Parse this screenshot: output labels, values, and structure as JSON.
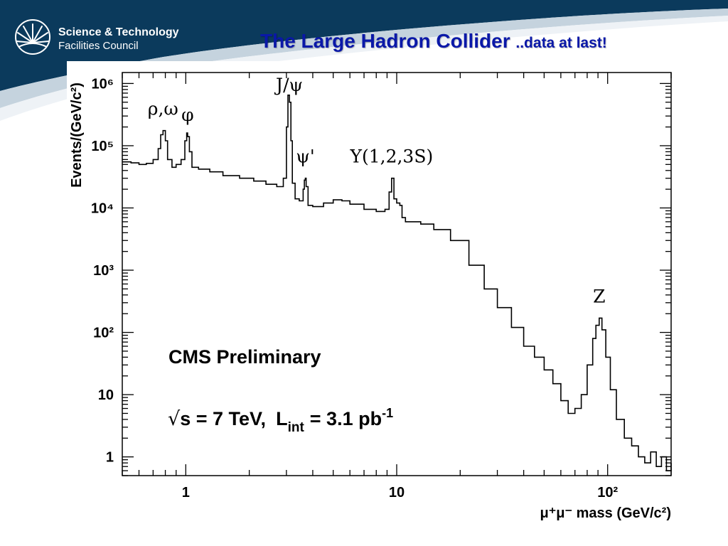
{
  "header": {
    "logo_line_1": "Science & Technology",
    "logo_line_2": "Facilities Council",
    "title": "The Large Hadron Collider",
    "title_suffix": "..data at last!"
  },
  "colors": {
    "banner": "#0b3a5c",
    "title": "#0a18a8",
    "histogram": "#000000"
  },
  "chart_data": {
    "type": "line",
    "title": "",
    "xlabel": "μ⁺μ⁻ mass (GeV/c²)",
    "ylabel": "Events/(GeV/c²)",
    "xscale": "log",
    "yscale": "log",
    "xlim": [
      0.5,
      200
    ],
    "ylim": [
      0.5,
      1500000
    ],
    "grid": false,
    "x_ticks": [
      {
        "value": 1,
        "label": "1"
      },
      {
        "value": 10,
        "label": "10"
      },
      {
        "value": 100,
        "label": "10²"
      }
    ],
    "y_ticks": [
      {
        "value": 1,
        "label": "1"
      },
      {
        "value": 10,
        "label": "10"
      },
      {
        "value": 100,
        "label": "10²"
      },
      {
        "value": 1000,
        "label": "10³"
      },
      {
        "value": 10000,
        "label": "10⁴"
      },
      {
        "value": 100000,
        "label": "10⁵"
      },
      {
        "value": 1000000,
        "label": "10⁶"
      }
    ],
    "series": [
      {
        "x": [
          0.5,
          0.55,
          0.6,
          0.65,
          0.7,
          0.74,
          0.76,
          0.78,
          0.8,
          0.82,
          0.86,
          0.9,
          0.95,
          0.99,
          1.01,
          1.02,
          1.04,
          1.07,
          1.15,
          1.3,
          1.5,
          1.8,
          2.1,
          2.4,
          2.7,
          2.9,
          3.0,
          3.05,
          3.1,
          3.15,
          3.2,
          3.3,
          3.45,
          3.6,
          3.65,
          3.69,
          3.72,
          3.8,
          4.0,
          4.5,
          5.0,
          5.5,
          6.0,
          7.0,
          8.0,
          8.8,
          9.2,
          9.46,
          9.7,
          10.0,
          10.35,
          10.6,
          11.0,
          13.0,
          15.0,
          18.0,
          22.0,
          26.0,
          30.0,
          35.0,
          40.0,
          45.0,
          50.0,
          55.0,
          60.0,
          65.0,
          70.0,
          75.0,
          80.0,
          85.0,
          88.0,
          91.2,
          94.0,
          98.0,
          103.0,
          110.0,
          120.0,
          130.0,
          140.0,
          150.0,
          160.0,
          170.0,
          180.0,
          190.0,
          200.0
        ],
        "y": [
          55000,
          53000,
          50000,
          52000,
          60000,
          90000,
          150000,
          175000,
          120000,
          60000,
          45000,
          50000,
          60000,
          120000,
          160000,
          140000,
          80000,
          45000,
          42000,
          38000,
          33000,
          30000,
          27000,
          24000,
          22000,
          30000,
          200000,
          650000,
          500000,
          120000,
          25000,
          14000,
          13000,
          20000,
          28000,
          30000,
          22000,
          11000,
          10500,
          12000,
          13500,
          13000,
          11500,
          9500,
          8800,
          9500,
          18000,
          30000,
          14000,
          12000,
          11000,
          7000,
          6000,
          5500,
          4500,
          3000,
          1200,
          500,
          250,
          120,
          60,
          40,
          25,
          15,
          8,
          5,
          6,
          10,
          30,
          80,
          130,
          170,
          110,
          40,
          12,
          4,
          2,
          1.5,
          1,
          0.8,
          1.2,
          0.7,
          1,
          0.6,
          0.8
        ]
      }
    ],
    "annotations": [
      {
        "text": "ρ,ω",
        "x": 0.78
      },
      {
        "text": "φ",
        "x": 1.02
      },
      {
        "text": "J/ψ",
        "x": 3.1
      },
      {
        "text": "ψ'",
        "x": 3.69
      },
      {
        "text": "Υ(1,2,3S)",
        "x": 9.46
      },
      {
        "text": "Z",
        "x": 91.2
      }
    ],
    "info_text": {
      "experiment": "CMS Preliminary",
      "sqrt_prefix": "√",
      "energy_text": "s = 7 TeV,",
      "lumi_label": "L",
      "lumi_subscript": "int",
      "lumi_value": "= 3.1 pb",
      "lumi_exponent": "-1"
    }
  }
}
